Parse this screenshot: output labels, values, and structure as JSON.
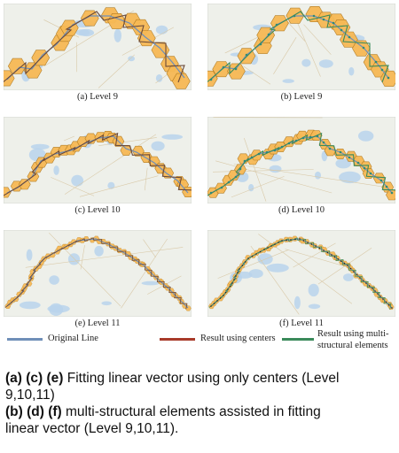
{
  "panels": [
    {
      "id": "a",
      "caption": "(a) Level 9",
      "level": 9,
      "variant": "centers"
    },
    {
      "id": "b",
      "caption": "(b) Level 9",
      "level": 9,
      "variant": "multi"
    },
    {
      "id": "c",
      "caption": "(c) Level 10",
      "level": 10,
      "variant": "centers"
    },
    {
      "id": "d",
      "caption": "(d) Level 10",
      "level": 10,
      "variant": "multi"
    },
    {
      "id": "e",
      "caption": "(e) Level 11",
      "level": 11,
      "variant": "centers"
    },
    {
      "id": "f",
      "caption": "(f) Level 11",
      "level": 11,
      "variant": "multi"
    }
  ],
  "legend": {
    "original": {
      "label": "Original Line",
      "color": "#6f8fb8"
    },
    "centers": {
      "label": "Result using centers",
      "color": "#a83a2a"
    },
    "multi": {
      "label_line1": "Result using multi-",
      "label_line2": "structural elements",
      "color": "#3a8a5a"
    }
  },
  "colors": {
    "hex_fill": "#f7b955",
    "hex_stroke": "#b07a20",
    "map_bg": "#eef0ea",
    "water": "#b9d3ec"
  },
  "description": {
    "line1_bold": "(a) (c) (e)",
    "line1_text": " Fitting linear vector using only centers (Level",
    "line2_text": "9,10,11)",
    "line3_bold": "(b) (d) (f)",
    "line3_text": " multi-structural elements assisted in fitting",
    "line4_text": "linear vector (Level 9,10,11)."
  }
}
